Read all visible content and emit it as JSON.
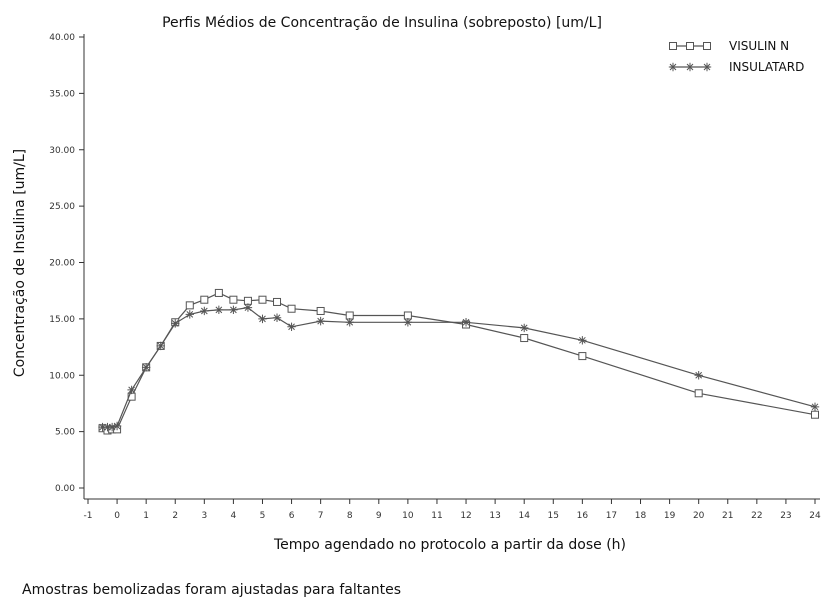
{
  "chart_data": {
    "type": "line",
    "title": "Perfis Médios de Concentração de Insulina (sobreposto) [um/L]",
    "xlabel": "Tempo agendado no protocolo a partir da dose (h)",
    "ylabel": "Concentração de Insulina [um/L]",
    "xlim": [
      -1,
      24
    ],
    "ylim": [
      0,
      40
    ],
    "x_ticks": [
      -1,
      0,
      1,
      2,
      3,
      4,
      5,
      6,
      7,
      8,
      9,
      10,
      11,
      12,
      13,
      14,
      15,
      16,
      17,
      18,
      19,
      20,
      21,
      22,
      23,
      24
    ],
    "y_ticks": [
      "0.00",
      "5.00",
      "10.00",
      "15.00",
      "20.00",
      "25.00",
      "30.00",
      "35.00",
      "40.00"
    ],
    "legend_position": "top-right",
    "grid": false,
    "series": [
      {
        "name": "VISULIN N",
        "marker": "square",
        "color": "#555555",
        "points": [
          [
            -0.5,
            5.3
          ],
          [
            -0.33,
            5.1
          ],
          [
            -0.17,
            5.2
          ],
          [
            0,
            5.2
          ],
          [
            0.5,
            8.1
          ],
          [
            1,
            10.7
          ],
          [
            1.5,
            12.6
          ],
          [
            2,
            14.7
          ],
          [
            2.5,
            16.2
          ],
          [
            3,
            16.7
          ],
          [
            3.5,
            17.3
          ],
          [
            4,
            16.7
          ],
          [
            4.5,
            16.6
          ],
          [
            5,
            16.7
          ],
          [
            5.5,
            16.5
          ],
          [
            6,
            15.9
          ],
          [
            7,
            15.7
          ],
          [
            8,
            15.3
          ],
          [
            10,
            15.3
          ],
          [
            12,
            14.5
          ],
          [
            14,
            13.3
          ],
          [
            16,
            11.7
          ],
          [
            20,
            8.4
          ],
          [
            24,
            6.5
          ]
        ]
      },
      {
        "name": "INSULATARD",
        "marker": "star",
        "color": "#555555",
        "points": [
          [
            -0.5,
            5.4
          ],
          [
            -0.33,
            5.4
          ],
          [
            -0.17,
            5.4
          ],
          [
            0,
            5.5
          ],
          [
            0.5,
            8.7
          ],
          [
            1,
            10.7
          ],
          [
            1.5,
            12.6
          ],
          [
            2,
            14.6
          ],
          [
            2.5,
            15.4
          ],
          [
            3,
            15.7
          ],
          [
            3.5,
            15.8
          ],
          [
            4,
            15.8
          ],
          [
            4.5,
            16.0
          ],
          [
            5,
            15.0
          ],
          [
            5.5,
            15.1
          ],
          [
            6,
            14.3
          ],
          [
            7,
            14.8
          ],
          [
            8,
            14.7
          ],
          [
            10,
            14.7
          ],
          [
            12,
            14.7
          ],
          [
            14,
            14.2
          ],
          [
            16,
            13.1
          ],
          [
            20,
            10.0
          ],
          [
            24,
            7.2
          ]
        ]
      }
    ]
  },
  "footnote": "Amostras bemolizadas foram ajustadas para faltantes"
}
